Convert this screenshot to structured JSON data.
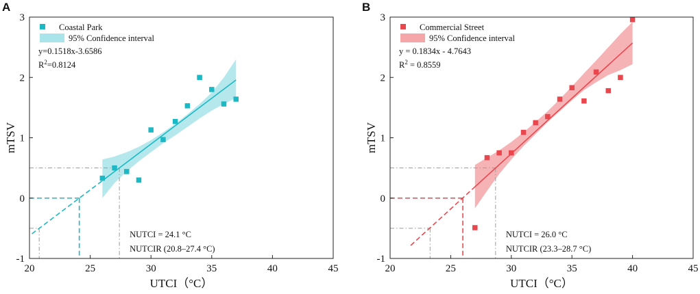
{
  "chart_data": [
    {
      "panel": "A",
      "type": "scatter",
      "xlabel": "UTCI（°C）",
      "ylabel": "mTSV",
      "xlim": [
        20,
        45
      ],
      "ylim": [
        -1,
        3
      ],
      "xticks": [
        20,
        25,
        30,
        35,
        40,
        45
      ],
      "yticks": [
        -1,
        0,
        1,
        2,
        3
      ],
      "color": "#1cb8c4",
      "band_color": "#a8e4ea",
      "legend": {
        "points_label": "Coastal Park",
        "band_label": "95% Confidence interval",
        "placement": "top-left"
      },
      "equation": {
        "prefix": "y=0.1518x-3.6586",
        "r2_prefix": "R",
        "r2_sup": "2",
        "r2_value": "=0.8124"
      },
      "fit": {
        "slope": 0.1518,
        "intercept": -3.6586,
        "x_solid": [
          26,
          37
        ],
        "x_dashed": [
          20.2,
          26
        ]
      },
      "band": {
        "x": [
          26,
          27,
          28,
          29,
          30,
          31,
          32,
          33,
          34,
          35,
          36,
          37
        ],
        "lower": [
          0.0,
          0.25,
          0.44,
          0.61,
          0.76,
          0.91,
          1.04,
          1.18,
          1.32,
          1.45,
          1.56,
          1.66
        ],
        "upper": [
          0.64,
          0.69,
          0.76,
          0.85,
          0.96,
          1.09,
          1.23,
          1.39,
          1.56,
          1.75,
          2.0,
          2.3
        ]
      },
      "points": [
        {
          "x": 26,
          "y": 0.33
        },
        {
          "x": 27,
          "y": 0.5
        },
        {
          "x": 28,
          "y": 0.44
        },
        {
          "x": 29,
          "y": 0.3
        },
        {
          "x": 30,
          "y": 1.13
        },
        {
          "x": 31,
          "y": 0.97
        },
        {
          "x": 32,
          "y": 1.27
        },
        {
          "x": 33,
          "y": 1.53
        },
        {
          "x": 34,
          "y": 2.0
        },
        {
          "x": 35,
          "y": 1.8
        },
        {
          "x": 36,
          "y": 1.56
        },
        {
          "x": 37,
          "y": 1.64
        }
      ],
      "nutci": {
        "value": 24.1,
        "lo": 20.8,
        "hi": 27.4,
        "label": "NUTCI = 24.1 °C",
        "range_label": "NUTCIR (20.8–27.4 °C)"
      }
    },
    {
      "panel": "B",
      "type": "scatter",
      "xlabel": "UTCI（°C）",
      "ylabel": "mTSV",
      "xlim": [
        20,
        45
      ],
      "ylim": [
        -1,
        3
      ],
      "xticks": [
        20,
        25,
        30,
        35,
        40,
        45
      ],
      "yticks": [
        -1,
        0,
        1,
        2,
        3
      ],
      "color": "#e8474d",
      "band_color": "#f4a6a9",
      "legend": {
        "points_label": "Commercial Street",
        "band_label": "95% Confidence interval",
        "placement": "top-left"
      },
      "equation": {
        "prefix": "y = 0.1834x - 4.7643",
        "r2_prefix": "R",
        "r2_sup": "2",
        "r2_value": " = 0.8559"
      },
      "fit": {
        "slope": 0.1834,
        "intercept": -4.7643,
        "x_solid": [
          27,
          40
        ],
        "x_dashed": [
          21.7,
          27
        ]
      },
      "band": {
        "x": [
          27,
          28,
          29,
          30,
          31,
          32,
          33,
          34,
          35,
          36,
          37,
          38,
          39,
          40
        ],
        "lower": [
          -0.17,
          0.12,
          0.4,
          0.64,
          0.86,
          1.06,
          1.26,
          1.44,
          1.62,
          1.79,
          1.92,
          2.04,
          2.12,
          2.22
        ],
        "upper": [
          0.55,
          0.67,
          0.79,
          0.93,
          1.09,
          1.26,
          1.44,
          1.64,
          1.85,
          2.07,
          2.28,
          2.5,
          2.72,
          2.92
        ]
      },
      "points": [
        {
          "x": 27,
          "y": -0.49
        },
        {
          "x": 28,
          "y": 0.67
        },
        {
          "x": 29,
          "y": 0.75
        },
        {
          "x": 30,
          "y": 0.75
        },
        {
          "x": 31,
          "y": 1.09
        },
        {
          "x": 32,
          "y": 1.25
        },
        {
          "x": 33,
          "y": 1.35
        },
        {
          "x": 34,
          "y": 1.64
        },
        {
          "x": 35,
          "y": 1.83
        },
        {
          "x": 36,
          "y": 1.61
        },
        {
          "x": 37,
          "y": 2.09
        },
        {
          "x": 38,
          "y": 1.78
        },
        {
          "x": 39,
          "y": 2.0
        },
        {
          "x": 40,
          "y": 3.0
        }
      ],
      "nutci": {
        "value": 26.0,
        "lo": 23.3,
        "hi": 28.7,
        "label": "NUTCI = 26.0 °C",
        "range_label": "NUTCIR (23.3–28.7 °C)"
      }
    }
  ]
}
